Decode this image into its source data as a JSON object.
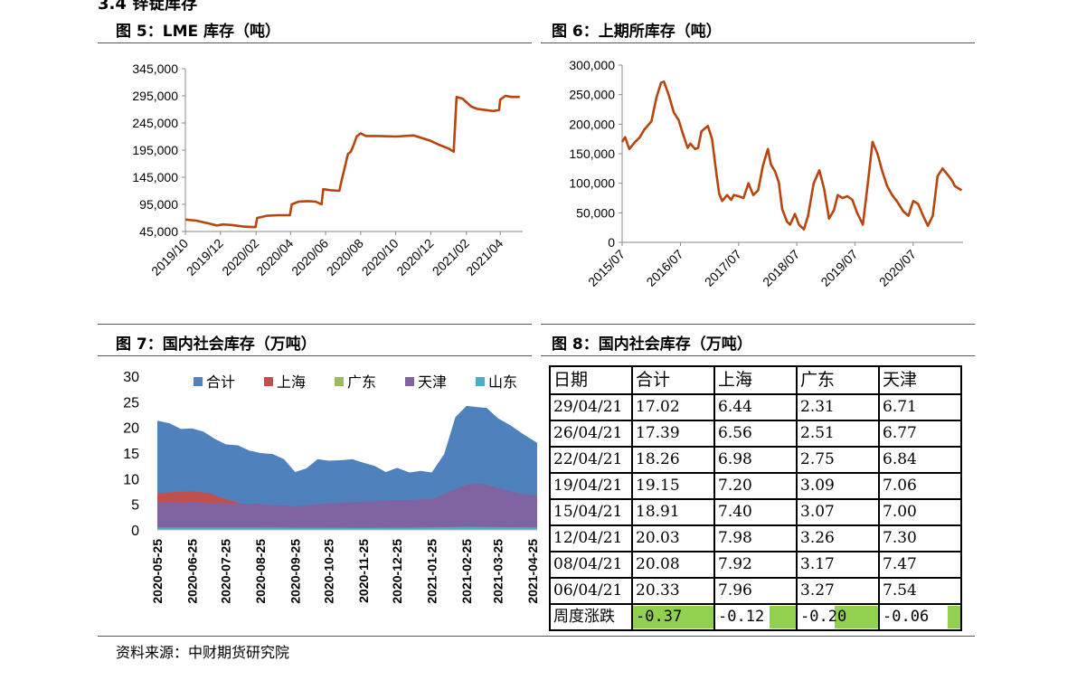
{
  "section_title": "3.4 锌锭库存",
  "source": "资料来源：中财期货研究院",
  "panels": {
    "fig5": "图 5：LME 库存（吨）",
    "fig6": "图 6：上期所库存（吨）",
    "fig7": "图 7：国内社会库存（万吨）",
    "fig8": "图 8：国内社会库存（万吨）"
  },
  "chart_data": [
    {
      "id": "fig5",
      "type": "line",
      "title": "图 5：LME 库存（吨）",
      "color": "#b8440e",
      "ylim": [
        45000,
        345000
      ],
      "yticks": [
        45000,
        95000,
        145000,
        195000,
        245000,
        295000,
        345000
      ],
      "ytick_labels": [
        "45,000",
        "95,000",
        "145,000",
        "195,000",
        "245,000",
        "295,000",
        "345,000"
      ],
      "x_range": [
        "2019-10-01",
        "2021-05-10"
      ],
      "xtick_labels": [
        "2019/10",
        "2019/12",
        "2020/02",
        "2020/04",
        "2020/06",
        "2020/08",
        "2020/10",
        "2020/12",
        "2021/02",
        "2021/04"
      ],
      "xticks": [
        "2019-10-01",
        "2019-12-01",
        "2020-02-01",
        "2020-04-01",
        "2020-06-01",
        "2020-08-01",
        "2020-10-01",
        "2020-12-01",
        "2021-02-01",
        "2021-04-01"
      ],
      "series": [
        {
          "x": [
            "2019-10-01",
            "2019-10-20",
            "2019-11-10",
            "2019-11-25",
            "2019-12-05",
            "2019-12-20",
            "2020-01-10",
            "2020-01-31",
            "2020-02-03",
            "2020-02-20",
            "2020-03-10",
            "2020-03-31",
            "2020-04-03",
            "2020-04-15",
            "2020-05-01",
            "2020-05-15",
            "2020-05-25",
            "2020-05-28",
            "2020-06-10",
            "2020-06-25",
            "2020-06-28",
            "2020-07-10",
            "2020-07-15",
            "2020-07-20",
            "2020-07-25",
            "2020-08-01",
            "2020-08-10",
            "2020-09-01",
            "2020-10-01",
            "2020-11-01",
            "2020-12-01",
            "2020-12-15",
            "2021-01-01",
            "2021-01-10",
            "2021-01-15",
            "2021-01-25",
            "2021-02-10",
            "2021-02-20",
            "2021-03-20",
            "2021-03-30",
            "2021-04-01",
            "2021-04-10",
            "2021-04-20",
            "2021-05-05"
          ],
          "y": [
            67000,
            65000,
            60000,
            56000,
            58000,
            57000,
            54000,
            53000,
            70000,
            74000,
            75000,
            75000,
            95000,
            100000,
            101000,
            100000,
            95000,
            123000,
            121000,
            120000,
            135000,
            188000,
            192000,
            205000,
            220000,
            226000,
            221000,
            221000,
            220000,
            222000,
            212000,
            205000,
            198000,
            192000,
            293000,
            290000,
            275000,
            271000,
            267000,
            269000,
            288000,
            295000,
            293000,
            293000
          ]
        }
      ]
    },
    {
      "id": "fig6",
      "type": "line",
      "title": "图 6：上期所库存（吨）",
      "color": "#b8440e",
      "ylim": [
        0,
        300000
      ],
      "yticks": [
        0,
        50000,
        100000,
        150000,
        200000,
        250000,
        300000
      ],
      "ytick_labels": [
        "0",
        "50,000",
        "100,000",
        "150,000",
        "200,000",
        "250,000",
        "300,000"
      ],
      "x_range": [
        "2015-07-01",
        "2021-05-10"
      ],
      "xtick_labels": [
        "2015/07",
        "2016/07",
        "2017/07",
        "2018/07",
        "2019/07",
        "2020/07"
      ],
      "xticks": [
        "2015-07-01",
        "2016-07-01",
        "2017-07-01",
        "2018-07-01",
        "2019-07-01",
        "2020-07-01"
      ],
      "series": [
        {
          "x": [
            "2015-07-01",
            "2015-07-20",
            "2015-08-15",
            "2015-09-20",
            "2015-10-20",
            "2015-11-15",
            "2016-01-01",
            "2016-02-01",
            "2016-03-01",
            "2016-03-20",
            "2016-04-20",
            "2016-05-20",
            "2016-06-20",
            "2016-07-15",
            "2016-08-15",
            "2016-09-01",
            "2016-10-01",
            "2016-10-20",
            "2016-11-10",
            "2016-12-20",
            "2017-01-15",
            "2017-02-10",
            "2017-03-01",
            "2017-03-20",
            "2017-04-20",
            "2017-05-15",
            "2017-06-01",
            "2017-07-01",
            "2017-08-01",
            "2017-09-01",
            "2017-10-01",
            "2017-11-01",
            "2017-12-01",
            "2018-01-01",
            "2018-01-20",
            "2018-02-15",
            "2018-03-10",
            "2018-04-01",
            "2018-05-01",
            "2018-05-20",
            "2018-06-20",
            "2018-07-15",
            "2018-08-15",
            "2018-09-10",
            "2018-10-15",
            "2018-11-20",
            "2018-12-20",
            "2019-01-20",
            "2019-02-20",
            "2019-03-15",
            "2019-04-15",
            "2019-05-15",
            "2019-06-15",
            "2019-07-15",
            "2019-08-20",
            "2019-09-20",
            "2019-10-20",
            "2019-11-20",
            "2019-12-20",
            "2020-01-20",
            "2020-02-20",
            "2020-03-20",
            "2020-05-01",
            "2020-06-01",
            "2020-07-01",
            "2020-08-01",
            "2020-09-01",
            "2020-10-01",
            "2020-11-01",
            "2020-12-01",
            "2021-01-01",
            "2021-02-01",
            "2021-03-01",
            "2021-03-20",
            "2021-04-20",
            "2021-05-01"
          ],
          "y": [
            170000,
            178000,
            158000,
            170000,
            178000,
            190000,
            205000,
            245000,
            270000,
            272000,
            248000,
            220000,
            207000,
            185000,
            160000,
            167000,
            158000,
            160000,
            188000,
            197000,
            175000,
            120000,
            82000,
            70000,
            80000,
            72000,
            80000,
            78000,
            75000,
            100000,
            80000,
            88000,
            130000,
            158000,
            132000,
            120000,
            102000,
            56000,
            35000,
            30000,
            48000,
            30000,
            22000,
            45000,
            100000,
            122000,
            90000,
            40000,
            55000,
            80000,
            75000,
            78000,
            72000,
            50000,
            30000,
            100000,
            170000,
            150000,
            120000,
            95000,
            80000,
            70000,
            52000,
            45000,
            70000,
            65000,
            45000,
            28000,
            45000,
            112000,
            125000,
            115000,
            105000,
            95000,
            90000,
            88000
          ]
        }
      ]
    },
    {
      "id": "fig7",
      "type": "area",
      "title": "图 7：国内社会库存（万吨）",
      "ylim": [
        0,
        30
      ],
      "yticks": [
        0,
        5,
        10,
        15,
        20,
        25,
        30
      ],
      "x_range": [
        "2020-05-25",
        "2021-04-29"
      ],
      "xtick_labels": [
        "2020-05-25",
        "2020-06-25",
        "2020-07-25",
        "2020-08-25",
        "2020-09-25",
        "2020-10-25",
        "2020-11-25",
        "2020-12-25",
        "2021-01-25",
        "2021-02-25",
        "2021-03-25",
        "2021-04-25"
      ],
      "legend": "top",
      "series": [
        {
          "name": "合计",
          "color": "#4f81bd",
          "x": [
            "2020-05-25",
            "2020-06-05",
            "2020-06-15",
            "2020-06-25",
            "2020-07-05",
            "2020-07-15",
            "2020-07-25",
            "2020-08-05",
            "2020-08-15",
            "2020-08-25",
            "2020-09-05",
            "2020-09-15",
            "2020-09-25",
            "2020-10-05",
            "2020-10-15",
            "2020-10-25",
            "2020-11-05",
            "2020-11-15",
            "2020-11-25",
            "2020-12-05",
            "2020-12-15",
            "2020-12-25",
            "2021-01-05",
            "2021-01-15",
            "2021-01-25",
            "2021-02-05",
            "2021-02-15",
            "2021-02-25",
            "2021-03-05",
            "2021-03-15",
            "2021-03-25",
            "2021-04-06",
            "2021-04-15",
            "2021-04-29"
          ],
          "y": [
            21.3,
            20.8,
            19.7,
            19.8,
            19.2,
            17.8,
            16.7,
            16.5,
            15.5,
            15.0,
            14.8,
            13.8,
            11.3,
            12.0,
            13.8,
            13.5,
            13.6,
            13.8,
            13.1,
            12.5,
            11.3,
            12.1,
            11.2,
            11.5,
            11.2,
            14.8,
            22.0,
            24.2,
            24.0,
            23.8,
            21.8,
            20.3,
            18.9,
            17.0
          ]
        },
        {
          "name": "上海",
          "color": "#c0504d",
          "x": [
            "2020-05-25",
            "2020-06-10",
            "2020-06-25",
            "2020-07-10",
            "2020-07-25",
            "2020-08-10",
            "2020-08-25"
          ],
          "y": [
            7.2,
            7.4,
            7.5,
            7.2,
            6.0,
            5.0,
            5.2
          ]
        },
        {
          "name": "广东",
          "color": "#9bbb59",
          "x": [
            "2020-07-15",
            "2020-07-25",
            "2020-08-05"
          ],
          "y": [
            4.8,
            4.6,
            4.4
          ]
        },
        {
          "name": "天津",
          "color": "#8064a2",
          "x": [
            "2020-05-25",
            "2020-06-25",
            "2020-07-25",
            "2020-08-25",
            "2020-09-25",
            "2020-10-25",
            "2020-11-25",
            "2020-12-25",
            "2021-01-25",
            "2021-02-10",
            "2021-02-25",
            "2021-03-10",
            "2021-03-25",
            "2021-04-06",
            "2021-04-15",
            "2021-04-29"
          ],
          "y": [
            5.5,
            5.3,
            5.2,
            5.0,
            4.6,
            5.2,
            5.5,
            5.8,
            6.0,
            7.5,
            8.8,
            9.0,
            8.2,
            7.5,
            7.0,
            6.7
          ]
        },
        {
          "name": "山东",
          "color": "#4bacc6",
          "x": [
            "2020-05-25",
            "2020-08-25",
            "2020-11-25",
            "2021-01-25",
            "2021-02-25",
            "2021-04-29"
          ],
          "y": [
            0.5,
            0.5,
            0.4,
            0.5,
            0.6,
            0.5
          ]
        }
      ]
    },
    {
      "id": "fig8",
      "type": "table",
      "title": "图 8：国内社会库存（万吨）",
      "headers": [
        "日期",
        "合计",
        "上海",
        "广东",
        "天津"
      ],
      "rows": [
        [
          "29/04/21",
          "17.02",
          "6.44",
          "2.31",
          "6.71"
        ],
        [
          "26/04/21",
          "17.39",
          "6.56",
          "2.51",
          "6.77"
        ],
        [
          "22/04/21",
          "18.26",
          "6.98",
          "2.75",
          "6.84"
        ],
        [
          "19/04/21",
          "19.15",
          "7.20",
          "3.09",
          "7.06"
        ],
        [
          "15/04/21",
          "18.91",
          "7.40",
          "3.07",
          "7.00"
        ],
        [
          "12/04/21",
          "20.03",
          "7.98",
          "3.26",
          "7.30"
        ],
        [
          "08/04/21",
          "20.08",
          "7.92",
          "3.17",
          "7.47"
        ],
        [
          "06/04/21",
          "20.33",
          "7.96",
          "3.27",
          "7.54"
        ]
      ],
      "change_label": "周度涨跌",
      "changes": [
        -0.37,
        -0.12,
        -0.2,
        -0.06
      ],
      "change_text": [
        "-0.37",
        "-0.12",
        "-0.20",
        "-0.06"
      ],
      "change_bar_color": "#92d050"
    }
  ]
}
